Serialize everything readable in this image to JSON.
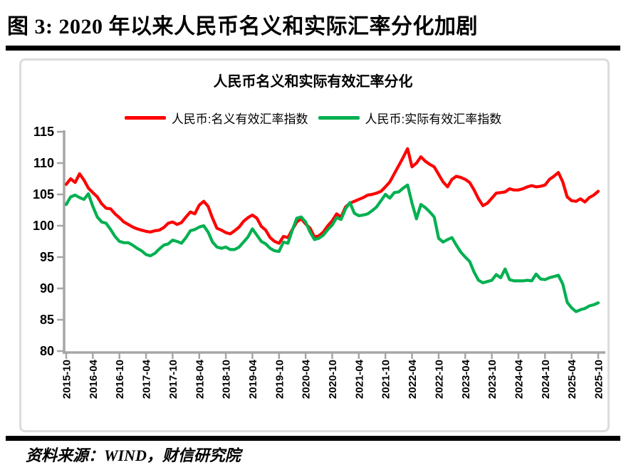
{
  "page": {
    "figure_title": "图 3: 2020 年以来人民币名义和实际汇率分化加剧",
    "source_note": "资料来源：WIND，财信研究院"
  },
  "chart_data": {
    "type": "line",
    "title": "人民币名义和实际有效汇率分化",
    "xlabel": "",
    "ylabel": "",
    "ylim": [
      80,
      115
    ],
    "y_ticks": [
      80,
      85,
      90,
      95,
      100,
      105,
      110,
      115
    ],
    "x_tick_labels": [
      "2015-10",
      "2016-04",
      "2016-10",
      "2017-04",
      "2017-10",
      "2018-04",
      "2018-10",
      "2019-04",
      "2019-10",
      "2020-04",
      "2020-10",
      "2021-04",
      "2021-10",
      "2022-04",
      "2022-10",
      "2023-04",
      "2023-10",
      "2024-04",
      "2024-10",
      "2025-04",
      "2025-10"
    ],
    "x_unit": "month",
    "months_per_tick": 6,
    "grid": false,
    "legend_position": "top",
    "axis_color": "#a6a6a6",
    "series": [
      {
        "name": "人民币:名义有效汇率指数",
        "color": "#fe0000",
        "values": [
          106.6,
          107.5,
          106.9,
          108.3,
          107.3,
          106.0,
          105.3,
          104.6,
          103.5,
          102.8,
          102.7,
          101.9,
          101.3,
          100.6,
          100.2,
          99.8,
          99.5,
          99.3,
          99.1,
          99.0,
          99.2,
          99.3,
          99.7,
          100.4,
          100.6,
          100.2,
          100.5,
          101.4,
          102.2,
          101.9,
          103.3,
          103.9,
          103.1,
          101.2,
          99.6,
          99.3,
          98.9,
          98.7,
          99.2,
          99.8,
          100.7,
          101.3,
          101.7,
          101.2,
          99.9,
          99.3,
          98.1,
          97.5,
          97.2,
          98.3,
          98.1,
          99.4,
          100.6,
          101.1,
          100.3,
          99.6,
          98.2,
          98.4,
          99.0,
          100.0,
          100.8,
          101.9,
          101.4,
          103.0,
          103.6,
          103.9,
          104.2,
          104.5,
          104.9,
          105.0,
          105.2,
          105.5,
          106.2,
          107.0,
          108.3,
          109.6,
          110.9,
          112.3,
          109.4,
          110.0,
          111.0,
          110.3,
          109.8,
          109.4,
          108.2,
          107.0,
          106.2,
          107.4,
          107.9,
          107.7,
          107.4,
          106.9,
          105.7,
          104.3,
          103.2,
          103.6,
          104.4,
          105.2,
          105.3,
          105.4,
          105.9,
          105.7,
          105.7,
          105.9,
          106.2,
          106.4,
          106.2,
          106.3,
          106.5,
          107.4,
          107.9,
          108.5,
          107.0,
          104.6,
          104.0,
          103.9,
          104.3,
          103.8,
          104.5,
          104.9,
          105.5
        ]
      },
      {
        "name": "人民币:实际有效汇率指数",
        "color": "#00b050",
        "values": [
          103.4,
          104.6,
          104.9,
          104.5,
          104.2,
          105.1,
          103.1,
          101.4,
          100.6,
          100.4,
          99.4,
          98.3,
          97.5,
          97.3,
          97.3,
          96.9,
          96.4,
          96.0,
          95.4,
          95.2,
          95.6,
          96.3,
          96.9,
          97.1,
          97.7,
          97.5,
          97.2,
          98.1,
          99.2,
          99.4,
          99.8,
          100.0,
          99.0,
          97.4,
          96.6,
          96.4,
          96.6,
          96.2,
          96.2,
          96.6,
          97.4,
          98.2,
          99.5,
          98.5,
          97.5,
          97.1,
          96.4,
          96.0,
          95.9,
          97.4,
          97.2,
          99.3,
          101.2,
          101.4,
          100.6,
          99.0,
          97.8,
          98.0,
          98.5,
          99.4,
          100.1,
          101.3,
          101.0,
          102.7,
          103.7,
          102.0,
          101.6,
          101.7,
          101.9,
          102.4,
          103.0,
          104.0,
          105.0,
          104.4,
          105.3,
          105.4,
          106.0,
          106.5,
          103.6,
          101.1,
          103.4,
          102.9,
          102.2,
          101.4,
          98.0,
          97.4,
          97.8,
          98.1,
          96.9,
          95.8,
          95.0,
          94.3,
          92.6,
          91.3,
          90.9,
          91.1,
          91.3,
          92.2,
          91.7,
          93.1,
          91.4,
          91.2,
          91.2,
          91.2,
          91.3,
          91.2,
          92.3,
          91.5,
          91.4,
          91.7,
          91.9,
          92.1,
          90.7,
          87.8,
          86.9,
          86.3,
          86.6,
          86.8,
          87.2,
          87.4,
          87.7
        ]
      }
    ]
  }
}
